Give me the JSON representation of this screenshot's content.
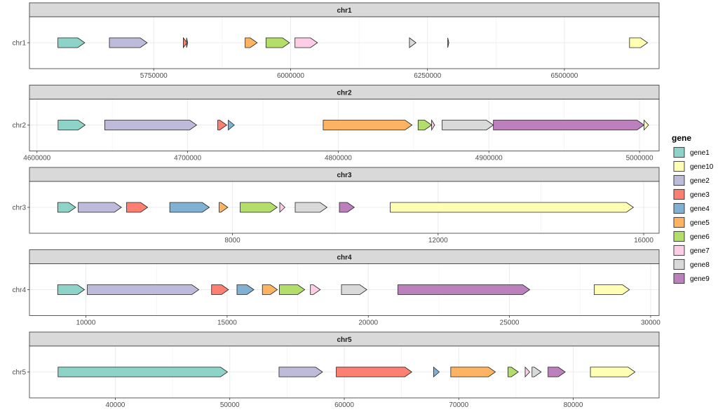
{
  "chart_data": {
    "type": "gene-arrow",
    "legend": {
      "title": "gene",
      "position": "right",
      "entries": [
        {
          "name": "gene1",
          "color": "#8DD3C7"
        },
        {
          "name": "gene10",
          "color": "#FFFFB3"
        },
        {
          "name": "gene2",
          "color": "#BEBADA"
        },
        {
          "name": "gene3",
          "color": "#FB8072"
        },
        {
          "name": "gene4",
          "color": "#80B1D3"
        },
        {
          "name": "gene5",
          "color": "#FDB462"
        },
        {
          "name": "gene6",
          "color": "#B3DE69"
        },
        {
          "name": "gene7",
          "color": "#FCCDE5"
        },
        {
          "name": "gene8",
          "color": "#D9D9D9"
        },
        {
          "name": "gene9",
          "color": "#BC80BD"
        }
      ]
    },
    "panels": [
      {
        "strip": "chr1",
        "y_label": "chr1",
        "xlim": [
          5523000,
          6673000
        ],
        "ticks": [
          5750000,
          6000000,
          6250000,
          6500000
        ],
        "tick_labels": [
          "5750000",
          "6000000",
          "6250000",
          "6500000"
        ],
        "genes": [
          {
            "gene": "gene1",
            "start": 5575000,
            "end": 5624000
          },
          {
            "gene": "gene2",
            "start": 5669000,
            "end": 5738000
          },
          {
            "gene": "gene3",
            "start": 5804000,
            "end": 5811000
          },
          {
            "gene": "gene4",
            "start": 5810000,
            "end": 5812000
          },
          {
            "gene": "gene5",
            "start": 5917000,
            "end": 5939000
          },
          {
            "gene": "gene6",
            "start": 5955000,
            "end": 5998000
          },
          {
            "gene": "gene7",
            "start": 6008000,
            "end": 6049000
          },
          {
            "gene": "gene8",
            "start": 6217000,
            "end": 6229000
          },
          {
            "gene": "gene9",
            "start": 6287000,
            "end": 6289000
          },
          {
            "gene": "gene10",
            "start": 6619000,
            "end": 6652000
          }
        ]
      },
      {
        "strip": "chr2",
        "y_label": "chr2",
        "xlim": [
          4595000,
          5013000
        ],
        "ticks": [
          4600000,
          4700000,
          4800000,
          4900000,
          5000000
        ],
        "tick_labels": [
          "4600000",
          "4700000",
          "4800000",
          "4900000",
          "5000000"
        ],
        "genes": [
          {
            "gene": "gene1",
            "start": 4614000,
            "end": 4632000
          },
          {
            "gene": "gene2",
            "start": 4645000,
            "end": 4706000
          },
          {
            "gene": "gene3",
            "start": 4720000,
            "end": 4726000
          },
          {
            "gene": "gene4",
            "start": 4727000,
            "end": 4731000
          },
          {
            "gene": "gene5",
            "start": 4790000,
            "end": 4849000
          },
          {
            "gene": "gene6",
            "start": 4853000,
            "end": 4862000
          },
          {
            "gene": "gene7",
            "start": 4862000,
            "end": 4864000
          },
          {
            "gene": "gene8",
            "start": 4869000,
            "end": 4903000
          },
          {
            "gene": "gene9",
            "start": 4903000,
            "end": 5003000
          },
          {
            "gene": "gene10",
            "start": 5003000,
            "end": 5006000
          }
        ]
      },
      {
        "strip": "chr3",
        "y_label": "chr3",
        "xlim": [
          4050,
          16300
        ],
        "ticks": [
          8000,
          12000,
          16000
        ],
        "tick_labels": [
          "8000",
          "12000",
          "16000"
        ],
        "genes": [
          {
            "gene": "gene1",
            "start": 4600,
            "end": 4950
          },
          {
            "gene": "gene2",
            "start": 5000,
            "end": 5840
          },
          {
            "gene": "gene3",
            "start": 5940,
            "end": 6350
          },
          {
            "gene": "gene4",
            "start": 6780,
            "end": 7550
          },
          {
            "gene": "gene5",
            "start": 7740,
            "end": 7910
          },
          {
            "gene": "gene6",
            "start": 8150,
            "end": 8870
          },
          {
            "gene": "gene7",
            "start": 8920,
            "end": 9020
          },
          {
            "gene": "gene8",
            "start": 9220,
            "end": 9840
          },
          {
            "gene": "gene9",
            "start": 10080,
            "end": 10370
          },
          {
            "gene": "gene10",
            "start": 11070,
            "end": 15800
          }
        ]
      },
      {
        "strip": "chr4",
        "y_label": "chr4",
        "xlim": [
          8000,
          30300
        ],
        "ticks": [
          10000,
          15000,
          20000,
          25000,
          30000
        ],
        "tick_labels": [
          "10000",
          "15000",
          "20000",
          "25000",
          "30000"
        ],
        "genes": [
          {
            "gene": "gene1",
            "start": 9000,
            "end": 9950
          },
          {
            "gene": "gene2",
            "start": 10050,
            "end": 14000
          },
          {
            "gene": "gene3",
            "start": 14450,
            "end": 15050
          },
          {
            "gene": "gene4",
            "start": 15350,
            "end": 15950
          },
          {
            "gene": "gene5",
            "start": 16250,
            "end": 16780
          },
          {
            "gene": "gene6",
            "start": 16850,
            "end": 17750
          },
          {
            "gene": "gene7",
            "start": 17950,
            "end": 18300
          },
          {
            "gene": "gene8",
            "start": 19050,
            "end": 19950
          },
          {
            "gene": "gene9",
            "start": 21050,
            "end": 25720
          },
          {
            "gene": "gene10",
            "start": 28000,
            "end": 29250
          }
        ]
      },
      {
        "strip": "chr5",
        "y_label": "chr5",
        "xlim": [
          32500,
          87500
        ],
        "ticks": [
          40000,
          50000,
          60000,
          70000,
          80000
        ],
        "tick_labels": [
          "40000",
          "50000",
          "60000",
          "70000",
          "80000"
        ],
        "genes": [
          {
            "gene": "gene1",
            "start": 35000,
            "end": 49800
          },
          {
            "gene": "gene2",
            "start": 54300,
            "end": 58100
          },
          {
            "gene": "gene3",
            "start": 59300,
            "end": 65900
          },
          {
            "gene": "gene4",
            "start": 67800,
            "end": 68300
          },
          {
            "gene": "gene5",
            "start": 69300,
            "end": 73200
          },
          {
            "gene": "gene6",
            "start": 74300,
            "end": 75200
          },
          {
            "gene": "gene7",
            "start": 75800,
            "end": 76200
          },
          {
            "gene": "gene8",
            "start": 76400,
            "end": 77200
          },
          {
            "gene": "gene9",
            "start": 77800,
            "end": 79300
          },
          {
            "gene": "gene10",
            "start": 81500,
            "end": 85400
          }
        ]
      }
    ]
  }
}
